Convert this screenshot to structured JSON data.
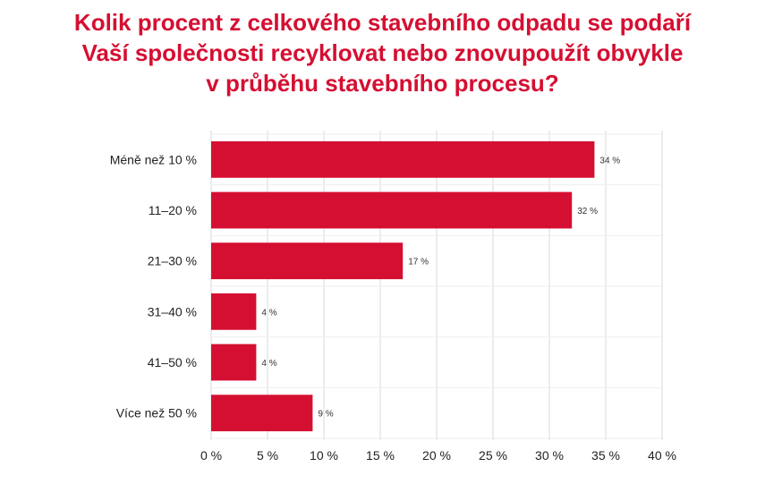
{
  "chart_data": {
    "type": "bar",
    "orientation": "horizontal",
    "title_lines": [
      "Kolik procent z celkového stavebního odpadu se podaří",
      "Vaší společnosti recyklovat nebo znovupoužít obvykle",
      "v průběhu stavebního procesu?"
    ],
    "categories": [
      "Méně než 10 %",
      "11–20 %",
      "21–30 %",
      "31–40 %",
      "41–50 %",
      "Více než 50 %"
    ],
    "values": [
      34,
      32,
      17,
      4,
      4,
      9
    ],
    "data_labels": [
      "34 %",
      "32 %",
      "17 %",
      "4 %",
      "4 %",
      "9 %"
    ],
    "xlim": [
      0,
      40
    ],
    "x_ticks": [
      0,
      5,
      10,
      15,
      20,
      25,
      30,
      35,
      40
    ],
    "x_tick_labels": [
      "0 %",
      "5 %",
      "10 %",
      "15 %",
      "20 %",
      "25 %",
      "30 %",
      "35 %",
      "40 %"
    ],
    "grid": true,
    "bar_color": "#d50f32",
    "title_color": "#d50f32"
  }
}
